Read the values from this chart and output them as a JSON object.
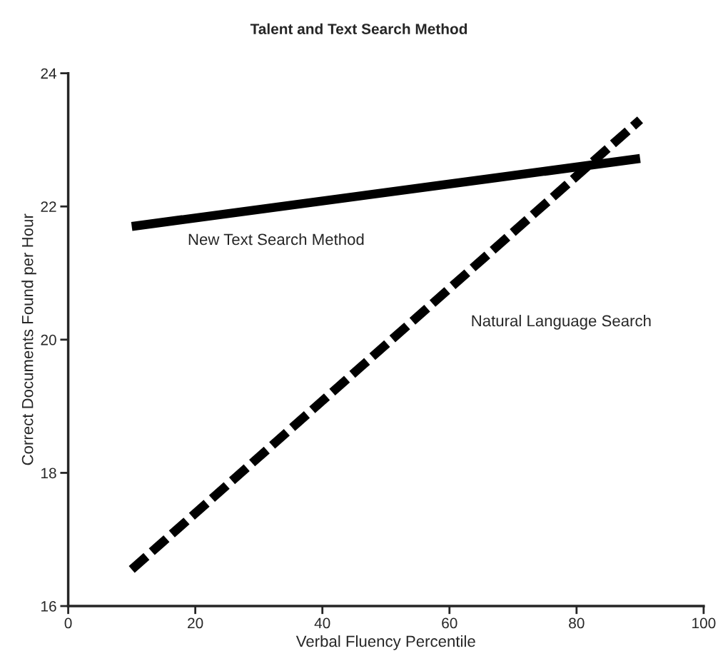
{
  "chart_data": {
    "type": "line",
    "title": "Talent and Text Search Method",
    "xlabel": "Verbal Fluency Percentile",
    "ylabel": "Correct Documents Found per Hour",
    "x": [
      10,
      90
    ],
    "series": [
      {
        "name": "New Text Search Method",
        "color": "#000000",
        "values": [
          21.7,
          22.72
        ],
        "line_style": "solid"
      },
      {
        "name": "Natural Language Search",
        "color": "#000000",
        "values": [
          16.55,
          23.3
        ],
        "line_style": "dashed"
      }
    ],
    "xlim": [
      0,
      100
    ],
    "xticks": [
      0,
      20,
      40,
      60,
      80,
      100
    ],
    "ylim": [
      16,
      24
    ],
    "yticks": [
      16,
      18,
      20,
      22,
      24
    ],
    "grid": false,
    "marker": "none"
  }
}
